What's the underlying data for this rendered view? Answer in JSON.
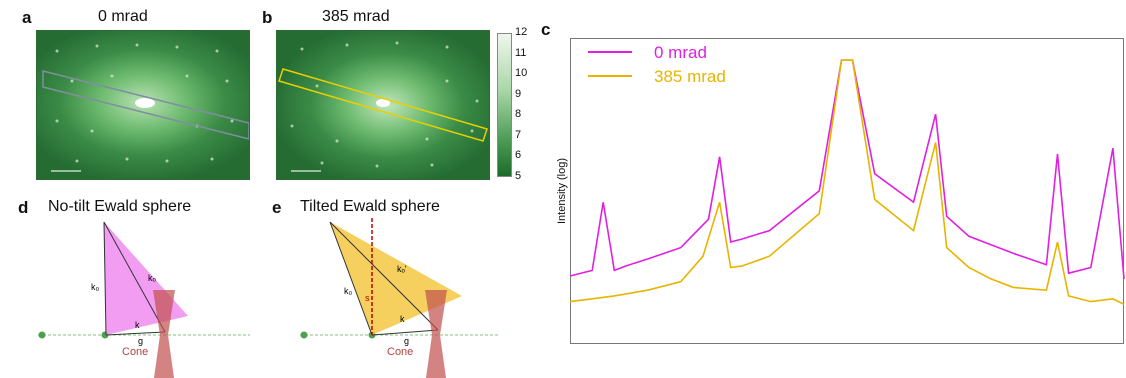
{
  "panels": {
    "a": {
      "letter": "a",
      "title": "0 mrad"
    },
    "b": {
      "letter": "b",
      "title": "385 mrad"
    },
    "c": {
      "letter": "c"
    },
    "d": {
      "letter": "d",
      "title": "No-tilt Ewald sphere",
      "cone": "Cone",
      "labels": {
        "k0": "k₀",
        "k": "k",
        "kg": "kₒ",
        "g": "g"
      }
    },
    "e": {
      "letter": "e",
      "title": "Tilted Ewald sphere",
      "cone": "Cone",
      "labels": {
        "k0": "k₀",
        "k": "k",
        "kg": "kₒ'",
        "g": "g",
        "s": "s"
      }
    }
  },
  "colorbar": {
    "ticks": [
      "12",
      "11",
      "10",
      "9",
      "8",
      "7",
      "6",
      "5"
    ],
    "colors": [
      "#e9f4e8",
      "#1c6b2a"
    ]
  },
  "colors": {
    "zero_mrad": "#e020e0",
    "tilt_mrad": "#e8b400",
    "pattern_bg": "#2a7a3a",
    "pink_triangle": "#f08cf0",
    "yellow_triangle": "#f5c842",
    "cone": "#c0504d"
  },
  "chart_data": {
    "type": "line",
    "title": "",
    "xlabel": "",
    "ylabel": "Intensity (log)",
    "legend_position": "top-left",
    "grid": false,
    "series": [
      {
        "name": "0 mrad",
        "color": "#e020e0",
        "x": [
          0,
          0.04,
          0.06,
          0.08,
          0.1,
          0.14,
          0.2,
          0.25,
          0.27,
          0.29,
          0.31,
          0.36,
          0.45,
          0.49,
          0.5,
          0.51,
          0.55,
          0.62,
          0.66,
          0.68,
          0.72,
          0.76,
          0.8,
          0.86,
          0.88,
          0.9,
          0.94,
          0.98,
          1.0
        ],
        "y": [
          0.38,
          0.42,
          0.9,
          0.42,
          0.45,
          0.5,
          0.58,
          0.78,
          1.22,
          0.62,
          0.64,
          0.7,
          0.98,
          1.9,
          1.9,
          1.9,
          1.1,
          0.9,
          1.52,
          0.8,
          0.66,
          0.6,
          0.54,
          0.46,
          1.24,
          0.4,
          0.44,
          1.28,
          0.36
        ]
      },
      {
        "name": "385 mrad",
        "color": "#e8b400",
        "x": [
          0,
          0.04,
          0.08,
          0.14,
          0.2,
          0.24,
          0.27,
          0.29,
          0.31,
          0.36,
          0.45,
          0.49,
          0.5,
          0.51,
          0.55,
          0.62,
          0.66,
          0.68,
          0.72,
          0.76,
          0.8,
          0.86,
          0.88,
          0.9,
          0.94,
          0.98,
          1.0
        ],
        "y": [
          0.2,
          0.22,
          0.24,
          0.28,
          0.34,
          0.52,
          0.9,
          0.44,
          0.45,
          0.52,
          0.82,
          1.9,
          1.9,
          1.9,
          0.92,
          0.7,
          1.32,
          0.58,
          0.44,
          0.36,
          0.3,
          0.28,
          0.62,
          0.24,
          0.2,
          0.22,
          0.18
        ]
      }
    ],
    "ylim": [
      0,
      2
    ]
  }
}
